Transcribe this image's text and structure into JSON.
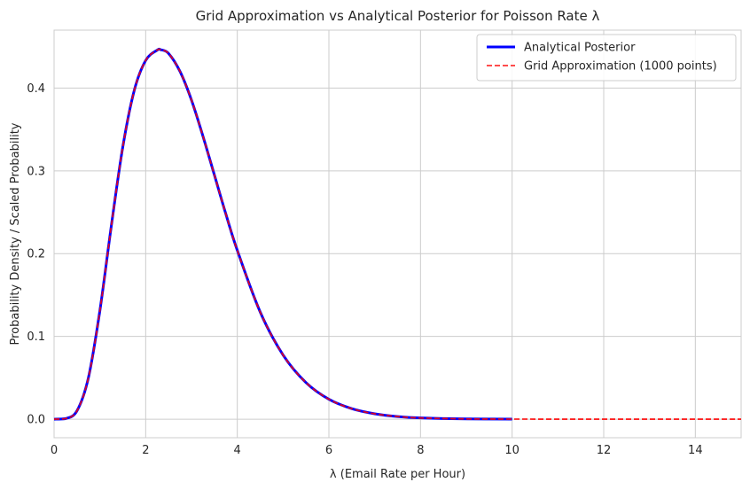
{
  "chart_data": {
    "type": "line",
    "title": "Grid Approximation vs Analytical Posterior for Poisson Rate λ",
    "xlabel": "λ (Email Rate per Hour)",
    "ylabel": "Probability Density / Scaled Probability",
    "xlim": [
      0,
      15
    ],
    "ylim": [
      -0.0224,
      0.47
    ],
    "x_ticks": [
      0,
      2,
      4,
      6,
      8,
      10,
      12,
      14
    ],
    "x_tick_labels": [
      "0",
      "2",
      "4",
      "6",
      "8",
      "10",
      "12",
      "14"
    ],
    "y_ticks": [
      0.0,
      0.1,
      0.2,
      0.3,
      0.4
    ],
    "y_tick_labels": [
      "0.0",
      "0.1",
      "0.2",
      "0.3",
      "0.4"
    ],
    "grid": true,
    "legend_position": "top-right",
    "series": [
      {
        "name": "Analytical Posterior",
        "color": "#0000ff",
        "style": "solid",
        "x": [
          0,
          0.25,
          0.5,
          0.75,
          1.0,
          1.25,
          1.5,
          1.75,
          2.0,
          2.25,
          2.33,
          2.5,
          2.75,
          3.0,
          3.25,
          3.5,
          3.75,
          4.0,
          4.5,
          5.0,
          5.5,
          6.0,
          6.5,
          7.0,
          7.5,
          8.0,
          9.0,
          10.0
        ],
        "y": [
          0.0,
          0.0006,
          0.0101,
          0.0502,
          0.1311,
          0.2336,
          0.3288,
          0.3971,
          0.4334,
          0.4458,
          0.4463,
          0.4418,
          0.42,
          0.3855,
          0.3419,
          0.295,
          0.2479,
          0.204,
          0.1295,
          0.0775,
          0.0442,
          0.0241,
          0.0127,
          0.0065,
          0.0032,
          0.0015,
          0.0003,
          0.0001
        ]
      },
      {
        "name": "Grid Approximation (1000 points)",
        "color": "#ff0000",
        "style": "dashed",
        "x": [
          0,
          0.25,
          0.5,
          0.75,
          1.0,
          1.25,
          1.5,
          1.75,
          2.0,
          2.25,
          2.33,
          2.5,
          2.75,
          3.0,
          3.25,
          3.5,
          3.75,
          4.0,
          4.5,
          5.0,
          5.5,
          6.0,
          6.5,
          7.0,
          7.5,
          8.0,
          9.0,
          10.0,
          11.0,
          12.0,
          13.0,
          14.0,
          15.0
        ],
        "y": [
          0.0,
          0.0006,
          0.0101,
          0.0502,
          0.1311,
          0.2336,
          0.3288,
          0.3971,
          0.4334,
          0.4458,
          0.4463,
          0.4418,
          0.42,
          0.3855,
          0.3419,
          0.295,
          0.2479,
          0.204,
          0.1295,
          0.0775,
          0.0442,
          0.0241,
          0.0127,
          0.0065,
          0.0032,
          0.0015,
          0.0003,
          0.0001,
          0.0,
          0.0,
          0.0,
          0.0,
          0.0
        ]
      }
    ]
  }
}
